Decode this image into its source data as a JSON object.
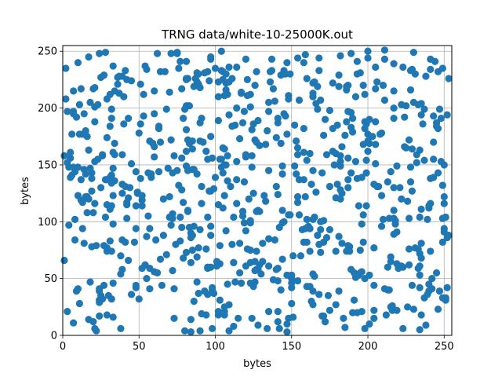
{
  "chart_data": {
    "type": "scatter",
    "title": "TRNG data/white-10-25000K.out",
    "xlabel": "bytes",
    "ylabel": "bytes",
    "xlim": [
      0,
      255
    ],
    "ylim": [
      0,
      255
    ],
    "xticks": [
      0,
      50,
      100,
      150,
      200,
      250
    ],
    "yticks": [
      0,
      50,
      100,
      150,
      200,
      250
    ],
    "grid": true,
    "marker_color": "#1f77b4",
    "x": [
      3,
      24,
      92,
      181,
      131,
      32,
      150,
      137,
      56,
      78,
      36,
      249,
      88,
      212,
      39,
      19,
      206,
      188,
      10,
      124,
      127,
      48,
      118,
      104,
      62,
      63,
      18,
      33,
      102,
      72,
      81,
      196,
      110,
      198,
      52,
      125,
      235,
      23,
      79,
      13,
      126,
      166,
      200,
      85,
      224,
      158,
      111,
      71,
      31,
      245,
      57,
      39,
      106,
      123,
      187,
      49,
      151,
      217,
      154,
      209,
      81,
      234,
      38,
      197,
      177,
      76,
      98,
      33,
      117,
      210,
      89,
      248,
      25,
      26,
      227,
      153,
      141,
      160,
      29,
      19,
      15,
      165,
      85,
      28,
      104,
      29,
      112,
      91,
      187,
      241,
      214,
      77,
      214,
      164,
      141,
      55,
      17,
      8,
      158,
      16,
      108,
      54,
      238,
      219,
      121,
      164,
      206,
      113,
      98,
      253,
      180,
      236,
      37,
      3,
      243,
      234,
      140,
      91,
      102,
      34,
      211,
      58,
      170,
      196,
      141,
      181,
      147,
      154,
      237,
      94,
      48,
      228,
      181,
      204,
      193,
      253,
      108,
      234,
      211,
      48,
      85,
      22,
      118,
      129,
      95,
      33,
      217,
      26,
      77,
      164,
      103,
      106,
      40,
      135,
      158,
      232,
      97,
      97,
      246,
      231,
      192,
      118,
      145,
      233,
      179,
      141,
      136,
      51,
      199,
      133,
      12,
      95,
      41,
      7,
      24,
      18,
      73,
      40,
      101,
      6,
      162,
      167,
      56,
      145,
      101,
      12,
      190,
      41,
      235,
      54,
      57,
      201,
      240,
      112,
      17,
      7,
      123,
      103,
      28,
      240,
      128,
      30,
      147,
      239,
      243,
      24,
      141,
      20,
      84,
      157,
      200,
      82,
      29,
      129,
      60,
      204,
      132,
      60,
      10,
      247,
      29,
      90,
      67,
      68,
      234,
      65,
      228,
      58,
      72,
      12,
      223,
      84,
      98,
      2,
      172,
      178,
      150,
      139,
      187,
      118,
      123,
      79,
      116,
      91,
      229,
      160,
      61,
      109,
      7,
      229,
      97,
      119,
      228,
      189,
      78,
      123,
      249,
      64,
      215,
      165,
      32,
      55,
      250,
      38,
      52,
      177,
      21,
      252,
      161,
      131,
      217,
      164,
      64,
      155,
      234,
      99,
      148,
      124,
      195,
      51,
      186,
      105,
      15,
      249,
      6,
      136,
      83,
      138,
      205,
      169,
      39,
      169,
      106,
      109,
      13,
      167,
      4,
      47,
      120,
      71,
      82,
      179,
      102,
      196,
      104,
      45,
      16,
      25,
      106,
      159,
      234,
      21,
      135,
      104,
      147,
      37,
      171,
      95,
      43,
      124,
      241,
      116,
      16,
      88,
      160,
      197,
      160,
      248,
      94,
      175,
      90,
      32,
      85,
      41,
      180,
      17,
      78,
      223,
      107,
      117,
      24,
      192,
      69,
      147,
      55,
      217,
      126,
      235,
      115,
      19,
      32,
      238,
      11,
      32,
      130,
      33,
      111,
      189,
      171,
      179,
      162,
      126,
      8,
      107,
      198,
      168,
      134,
      227,
      135,
      63,
      211,
      144,
      183,
      194,
      217,
      102,
      220,
      91,
      205,
      225,
      148,
      100,
      143,
      175,
      60,
      205,
      103,
      167,
      241,
      242,
      172,
      116,
      186,
      31,
      89,
      198,
      43,
      200,
      97,
      86,
      24,
      142,
      144,
      36,
      246,
      141,
      182,
      158,
      103,
      26,
      181,
      230,
      88,
      215,
      217,
      217,
      105,
      68,
      79,
      149,
      219,
      150,
      66,
      148,
      195,
      125,
      57,
      186,
      177,
      146,
      218,
      215,
      145,
      197,
      186,
      112,
      95,
      81,
      121,
      99,
      210,
      201,
      31,
      251,
      82,
      21,
      124,
      135,
      169,
      29,
      86,
      135,
      72,
      88,
      164,
      34,
      189,
      17,
      205,
      173,
      23,
      81,
      183,
      182,
      140,
      7,
      7,
      13,
      162,
      81,
      245,
      95,
      96,
      165,
      50,
      102,
      199,
      171,
      192,
      144,
      189,
      193,
      120,
      109,
      114,
      196,
      153,
      208,
      205,
      20,
      78,
      209,
      86,
      44,
      164,
      219,
      243,
      149,
      87,
      154,
      235,
      152,
      86,
      229,
      139,
      43,
      233,
      120,
      64,
      81,
      109,
      252,
      151,
      127,
      14,
      59,
      245,
      84,
      227,
      89,
      154,
      93,
      120,
      222,
      60,
      102,
      216,
      66,
      42,
      207,
      226,
      126,
      187,
      201,
      140,
      98,
      73,
      159,
      150,
      230,
      49,
      203,
      251,
      121,
      230,
      21,
      143,
      109,
      158,
      142,
      218,
      81,
      10,
      168,
      100,
      154,
      164,
      213,
      156,
      123,
      216,
      117,
      24,
      241,
      84,
      242,
      128,
      137,
      31,
      39,
      63,
      119,
      250,
      57,
      169,
      159,
      107,
      229,
      227,
      108,
      163,
      221,
      217,
      38,
      175,
      185,
      199,
      39,
      33,
      237,
      155,
      123,
      97,
      45,
      83,
      182,
      53,
      125,
      129,
      240,
      93,
      27,
      106,
      175,
      188,
      191,
      27,
      53,
      185,
      168,
      127,
      114,
      226,
      251,
      112,
      97,
      155,
      71,
      42,
      10,
      194,
      34,
      76,
      9,
      233,
      114,
      187,
      29,
      179,
      21,
      120,
      147,
      20,
      29,
      164,
      18,
      197,
      190,
      173,
      48,
      119,
      14,
      74,
      90,
      168,
      234,
      111,
      113,
      42,
      171,
      82,
      33,
      235,
      50,
      127,
      85,
      183,
      42,
      244,
      193,
      34,
      235,
      187,
      247,
      72,
      88,
      70,
      127,
      77,
      182,
      11,
      52,
      246,
      150,
      250,
      250,
      138,
      148,
      70,
      246,
      190,
      60,
      28,
      163,
      241,
      133,
      191,
      82,
      9,
      143,
      32,
      84,
      195,
      240,
      228,
      201,
      144,
      200,
      105,
      75,
      108,
      82,
      243,
      19,
      33,
      1,
      126,
      199,
      105,
      141,
      182,
      70,
      144,
      106,
      11,
      95,
      114,
      224,
      75,
      83,
      223,
      96,
      162,
      215,
      62,
      222,
      73,
      239,
      105,
      106,
      154,
      27,
      134,
      135,
      4,
      198,
      32,
      114,
      128,
      160,
      107,
      204,
      219,
      146,
      204,
      5,
      198,
      80,
      225,
      2,
      170,
      45,
      213,
      5,
      5,
      213,
      3,
      22,
      123,
      51,
      81,
      200,
      166,
      1,
      249,
      8,
      252,
      122,
      25,
      211,
      75,
      48,
      232,
      237,
      222,
      90,
      97,
      15,
      174,
      94,
      209,
      80,
      152,
      90,
      250,
      128,
      189,
      182,
      14,
      231,
      52,
      21,
      184,
      249,
      31,
      39,
      89,
      107,
      204,
      193
    ],
    "y": [
      21,
      39,
      170,
      229,
      81,
      191,
      42,
      233,
      105,
      217,
      221,
      103,
      69,
      18,
      84,
      143,
      131,
      78,
      123,
      181,
      232,
      114,
      109,
      233,
      55,
      182,
      205,
      98,
      189,
      103,
      162,
      139,
      131,
      212,
      114,
      125,
      81,
      203,
      68,
      94,
      57,
      126,
      171,
      146,
      166,
      82,
      226,
      248,
      83,
      55,
      41,
      133,
      123,
      75,
      137,
      125,
      16,
      130,
      159,
      178,
      225,
      61,
      6,
      168,
      222,
      235,
      42,
      123,
      213,
      102,
      77,
      153,
      227,
      159,
      76,
      142,
      48,
      154,
      115,
      127,
      122,
      223,
      171,
      104,
      250,
      18,
      64,
      191,
      79,
      138,
      103,
      104,
      40,
      222,
      12,
      50,
      163,
      102,
      182,
      108,
      212,
      62,
      9,
      91,
      76,
      145,
      223,
      185,
      40,
      88,
      185,
      186,
      213,
      197,
      193,
      72,
      174,
      19,
      115,
      159,
      251,
      142,
      17,
      21,
      191,
      219,
      10,
      117,
      33,
      76,
      144,
      233,
      39,
      44,
      138,
      226,
      136,
      104,
      41,
      94,
      75,
      79,
      105,
      62,
      60,
      16,
      215,
      158,
      241,
      39,
      63,
      211,
      210,
      85,
      240,
      159,
      243,
      175,
      182,
      77,
      51,
      109,
      100,
      76,
      74,
      21,
      223,
      138,
      143,
      118,
      137,
      232,
      82,
      148,
      31,
      147,
      15,
      186,
      65,
      177,
      74,
      219,
      143,
      233,
      61,
      217,
      20,
      131,
      18,
      237,
      94,
      190,
      112,
      8,
      14,
      11,
      64,
      31,
      137,
      114,
      58,
      35,
      3,
      102,
      170,
      41,
      59,
      12,
      3,
      93,
      250,
      202,
      208,
      167,
      195,
      22,
      123,
      166,
      240,
      39,
      74,
      218,
      232,
      71,
      42,
      44,
      148,
      139,
      57,
      119,
      236,
      14,
      6,
      235,
      12,
      150,
      50,
      206,
      130,
      187,
      201,
      117,
      81,
      131,
      164,
      102,
      84,
      27,
      197,
      234,
      96,
      135,
      135,
      183,
      128,
      101,
      82,
      67,
      144,
      52,
      114,
      87,
      150,
      70,
      123,
      182,
      116,
      194,
      96,
      65,
      110,
      210,
      232,
      137,
      53,
      37,
      15,
      148,
      231,
      221,
      74,
      112,
      180,
      235,
      141,
      232,
      169,
      49,
      151,
      100,
      58,
      93,
      25,
      223,
      177,
      88,
      97,
      82,
      92,
      172,
      226,
      27,
      223,
      56,
      148,
      224,
      122,
      35,
      18,
      122,
      5,
      201,
      21,
      155,
      177,
      228,
      176,
      36,
      191,
      158,
      234,
      55,
      175,
      47,
      82,
      106,
      43,
      191,
      18,
      93,
      4,
      134,
      164,
      233,
      133,
      120,
      95,
      6,
      230,
      214,
      29,
      153,
      147,
      53,
      234,
      103,
      172,
      68,
      15,
      78,
      74,
      228,
      28,
      199,
      54,
      161,
      80,
      248,
      101,
      121,
      43,
      220,
      84,
      92,
      188,
      80,
      180,
      172,
      205,
      184,
      243,
      99,
      166,
      114,
      191,
      210,
      59,
      116,
      188,
      202,
      211,
      235,
      229,
      198,
      215,
      217,
      155,
      199,
      74,
      41,
      190,
      173,
      216,
      139,
      37,
      6,
      66,
      177,
      127,
      219,
      17,
      95,
      67,
      227,
      143,
      124,
      149,
      161,
      79,
      32,
      87,
      23,
      142,
      69,
      239,
      89,
      232,
      199,
      191,
      230,
      63,
      46,
      120,
      208,
      75,
      43,
      171,
      188,
      162,
      193,
      101,
      65,
      195,
      82,
      219,
      104,
      59,
      149,
      225,
      129,
      220,
      10,
      184,
      33,
      172,
      153,
      15,
      145,
      207,
      174,
      96,
      197,
      143,
      231,
      213,
      169,
      196,
      245,
      236,
      159,
      155,
      241,
      125,
      120,
      58,
      195,
      215,
      117,
      94,
      73,
      184,
      104,
      224,
      104,
      178,
      18,
      186,
      82,
      210,
      149,
      58,
      230,
      243,
      236,
      200,
      98,
      171,
      177,
      168,
      217,
      156,
      123,
      146,
      130,
      54,
      149,
      155,
      106,
      226,
      165,
      111,
      185,
      30,
      44,
      84,
      121,
      203,
      159,
      170,
      226,
      4,
      42,
      70,
      170,
      146,
      169,
      187,
      90,
      103,
      221,
      122,
      231,
      61,
      120,
      157,
      21,
      22,
      88,
      117,
      131,
      25,
      47,
      220,
      169,
      131,
      156,
      41,
      94,
      53,
      249,
      126,
      175,
      31,
      211,
      205,
      218,
      40,
      194,
      137,
      6,
      98,
      202,
      41,
      36,
      139,
      244,
      27,
      135,
      70,
      46,
      26,
      46,
      248,
      116,
      64,
      50,
      9,
      243,
      111,
      125,
      144,
      197,
      94,
      59,
      73,
      247,
      216,
      127,
      62,
      158,
      30,
      130,
      200,
      54,
      131,
      7,
      114,
      228,
      46,
      154,
      207,
      99,
      245,
      36,
      202,
      246,
      193,
      186,
      109,
      39,
      39,
      229,
      21,
      22,
      74,
      55,
      44,
      212,
      176,
      233,
      58,
      116,
      118,
      104,
      64,
      60,
      106,
      97,
      103,
      148,
      53,
      215,
      132,
      39,
      59,
      137,
      156,
      77,
      160,
      188,
      157,
      240,
      108,
      137,
      102,
      47,
      220,
      179,
      86,
      42,
      99,
      195,
      80,
      93,
      244,
      163,
      184,
      47,
      115,
      17,
      110,
      237,
      194,
      32,
      74,
      88,
      81,
      225,
      241,
      241,
      136,
      204,
      197,
      199,
      107,
      223,
      104,
      109,
      83,
      153,
      203,
      119,
      23,
      28,
      116,
      122,
      217,
      106,
      214,
      232,
      191,
      56,
      249,
      133,
      243,
      168,
      31,
      109,
      192,
      169,
      32,
      86,
      55,
      45,
      216,
      53,
      110,
      162,
      143,
      145,
      45,
      145,
      139,
      138,
      147,
      158,
      65,
      154,
      225,
      187,
      128,
      122,
      142,
      164,
      177,
      155,
      236,
      192,
      248,
      95,
      60,
      127,
      160,
      25,
      248,
      203,
      158,
      36,
      165,
      150,
      48,
      79,
      6,
      61,
      148,
      182,
      141,
      153,
      189,
      226,
      150,
      15,
      22,
      230,
      77,
      156,
      50,
      199,
      165,
      208,
      143,
      151,
      60,
      139,
      161,
      40,
      152,
      4,
      212,
      186,
      181,
      244,
      204,
      66,
      33,
      144,
      86,
      120,
      130,
      207,
      249,
      44,
      152,
      199,
      61,
      187,
      88,
      142,
      35,
      162,
      96,
      4,
      149,
      171,
      91,
      110,
      143,
      158,
      81,
      230,
      59,
      6,
      15,
      132,
      212,
      159,
      230,
      222,
      133,
      20
    ]
  }
}
